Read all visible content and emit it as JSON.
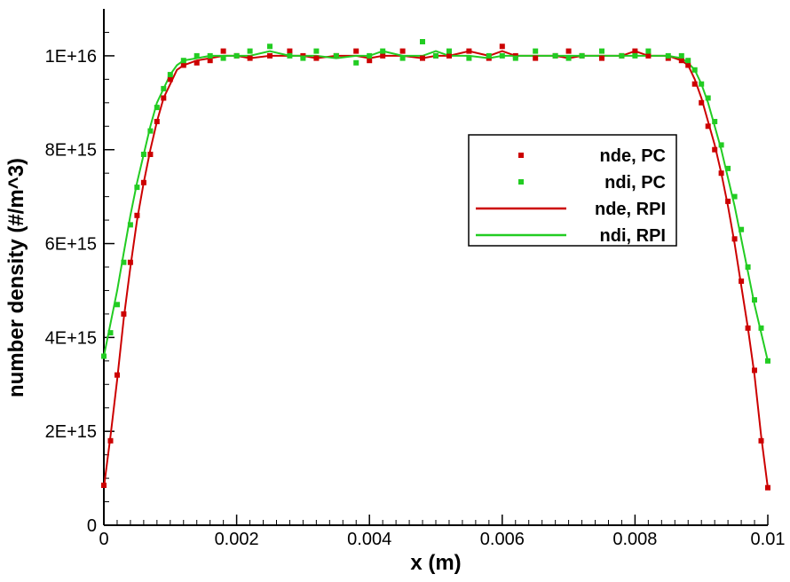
{
  "chart_data": {
    "type": "line",
    "title": "",
    "xlabel": "x (m)",
    "ylabel": "number density (#/m^3)",
    "xlim": [
      0,
      0.01
    ],
    "ylim": [
      0,
      1.1e+16
    ],
    "x_ticks": [
      0,
      0.002,
      0.004,
      0.006,
      0.008,
      0.01
    ],
    "x_tick_labels": [
      "0",
      "0.002",
      "0.004",
      "0.006",
      "0.008",
      "0.01"
    ],
    "y_ticks": [
      0,
      2000000000000000.0,
      4000000000000000.0,
      6000000000000000.0,
      8000000000000000.0,
      1e+16
    ],
    "y_tick_labels": [
      "0",
      "2E+15",
      "4E+15",
      "6E+15",
      "8E+15",
      "1E+16"
    ],
    "grid": false,
    "legend_position": "right",
    "colors": {
      "nde": "#cc0000",
      "ndi": "#22cc22"
    },
    "series": [
      {
        "name": "nde, PC",
        "style": "markers",
        "color": "#cc0000",
        "x": [
          0,
          0.0001,
          0.0002,
          0.0003,
          0.0004,
          0.0005,
          0.0006,
          0.0007,
          0.0008,
          0.0009,
          0.001,
          0.0012,
          0.0014,
          0.0016,
          0.0018,
          0.002,
          0.0022,
          0.0025,
          0.0028,
          0.003,
          0.0032,
          0.0035,
          0.0038,
          0.004,
          0.0042,
          0.0045,
          0.0048,
          0.005,
          0.0052,
          0.0055,
          0.0058,
          0.006,
          0.0062,
          0.0065,
          0.0068,
          0.007,
          0.0072,
          0.0075,
          0.0078,
          0.008,
          0.0082,
          0.0085,
          0.0087,
          0.0088,
          0.0089,
          0.009,
          0.0091,
          0.0092,
          0.0093,
          0.0094,
          0.0095,
          0.0096,
          0.0097,
          0.0098,
          0.0099,
          0.01
        ],
        "y": [
          850000000000000.0,
          1800000000000000.0,
          3200000000000000.0,
          4500000000000000.0,
          5600000000000000.0,
          6600000000000000.0,
          7300000000000000.0,
          7900000000000000.0,
          8600000000000000.0,
          9100000000000000.0,
          9500000000000000.0,
          9800000000000000.0,
          9850000000000000.0,
          9900000000000000.0,
          1.01e+16,
          1e+16,
          9950000000000000.0,
          1e+16,
          1.01e+16,
          1e+16,
          9950000000000000.0,
          1e+16,
          1.01e+16,
          9900000000000000.0,
          1e+16,
          1.01e+16,
          9950000000000000.0,
          1e+16,
          1e+16,
          1.01e+16,
          9950000000000000.0,
          1.02e+16,
          1e+16,
          9950000000000000.0,
          1e+16,
          1.01e+16,
          1e+16,
          9950000000000000.0,
          1e+16,
          1.01e+16,
          1e+16,
          9950000000000000.0,
          9900000000000000.0,
          9800000000000000.0,
          9400000000000000.0,
          9000000000000000.0,
          8500000000000000.0,
          8000000000000000.0,
          7500000000000000.0,
          6900000000000000.0,
          6100000000000000.0,
          5200000000000000.0,
          4200000000000000.0,
          3300000000000000.0,
          1800000000000000.0,
          800000000000000.0
        ]
      },
      {
        "name": "ndi, PC",
        "style": "markers",
        "color": "#22cc22",
        "x": [
          0,
          0.0001,
          0.0002,
          0.0003,
          0.0004,
          0.0005,
          0.0006,
          0.0007,
          0.0008,
          0.0009,
          0.001,
          0.0012,
          0.0014,
          0.0016,
          0.0018,
          0.002,
          0.0022,
          0.0025,
          0.0028,
          0.003,
          0.0032,
          0.0035,
          0.0038,
          0.004,
          0.0042,
          0.0045,
          0.0048,
          0.005,
          0.0052,
          0.0055,
          0.0058,
          0.006,
          0.0062,
          0.0065,
          0.0068,
          0.007,
          0.0072,
          0.0075,
          0.0078,
          0.008,
          0.0082,
          0.0085,
          0.0087,
          0.0088,
          0.0089,
          0.009,
          0.0091,
          0.0092,
          0.0093,
          0.0094,
          0.0095,
          0.0096,
          0.0097,
          0.0098,
          0.0099,
          0.01
        ],
        "y": [
          3600000000000000.0,
          4100000000000000.0,
          4700000000000000.0,
          5600000000000000.0,
          6400000000000000.0,
          7200000000000000.0,
          7900000000000000.0,
          8400000000000000.0,
          8900000000000000.0,
          9300000000000000.0,
          9600000000000000.0,
          9900000000000000.0,
          1e+16,
          1e+16,
          9950000000000000.0,
          1e+16,
          1.01e+16,
          1.02e+16,
          1e+16,
          9950000000000000.0,
          1.01e+16,
          1e+16,
          9850000000000000.0,
          1e+16,
          1.01e+16,
          9950000000000000.0,
          1.03e+16,
          1e+16,
          1.01e+16,
          9950000000000000.0,
          1e+16,
          1e+16,
          9950000000000000.0,
          1.01e+16,
          1e+16,
          9950000000000000.0,
          1e+16,
          1.01e+16,
          1e+16,
          1e+16,
          1.01e+16,
          1e+16,
          1e+16,
          9900000000000000.0,
          9700000000000000.0,
          9400000000000000.0,
          9100000000000000.0,
          8600000000000000.0,
          8100000000000000.0,
          7600000000000000.0,
          7000000000000000.0,
          6300000000000000.0,
          5500000000000000.0,
          4800000000000000.0,
          4200000000000000.0,
          3500000000000000.0
        ]
      },
      {
        "name": "nde, RPI",
        "style": "line",
        "color": "#cc0000",
        "x": [
          0,
          0.0001,
          0.0002,
          0.0003,
          0.0004,
          0.0005,
          0.0006,
          0.0007,
          0.0008,
          0.0009,
          0.001,
          0.0011,
          0.0012,
          0.0014,
          0.0016,
          0.0018,
          0.002,
          0.0022,
          0.0025,
          0.0028,
          0.003,
          0.0032,
          0.0035,
          0.0038,
          0.004,
          0.0042,
          0.0045,
          0.0048,
          0.005,
          0.0052,
          0.0055,
          0.0058,
          0.006,
          0.0062,
          0.0065,
          0.0068,
          0.007,
          0.0072,
          0.0075,
          0.0078,
          0.008,
          0.0082,
          0.0085,
          0.0087,
          0.0088,
          0.0089,
          0.009,
          0.0091,
          0.0092,
          0.0093,
          0.0094,
          0.0095,
          0.0096,
          0.0097,
          0.0098,
          0.0099,
          0.01
        ],
        "y": [
          800000000000000.0,
          1900000000000000.0,
          3100000000000000.0,
          4400000000000000.0,
          5500000000000000.0,
          6500000000000000.0,
          7300000000000000.0,
          8000000000000000.0,
          8600000000000000.0,
          9100000000000000.0,
          9400000000000000.0,
          9700000000000000.0,
          9800000000000000.0,
          9900000000000000.0,
          9950000000000000.0,
          1e+16,
          1e+16,
          9950000000000000.0,
          1e+16,
          1e+16,
          1e+16,
          9950000000000000.0,
          1e+16,
          1e+16,
          9950000000000000.0,
          1e+16,
          1e+16,
          9950000000000000.0,
          1e+16,
          1e+16,
          1.01e+16,
          1e+16,
          1.01e+16,
          1e+16,
          1e+16,
          1e+16,
          9950000000000000.0,
          1e+16,
          1e+16,
          1e+16,
          1.01e+16,
          1e+16,
          1e+16,
          9900000000000000.0,
          9800000000000000.0,
          9500000000000000.0,
          9100000000000000.0,
          8600000000000000.0,
          8100000000000000.0,
          7500000000000000.0,
          6800000000000000.0,
          6000000000000000.0,
          5100000000000000.0,
          4200000000000000.0,
          3200000000000000.0,
          1900000000000000.0,
          800000000000000.0
        ]
      },
      {
        "name": "ndi, RPI",
        "style": "line",
        "color": "#22cc22",
        "x": [
          0,
          0.0001,
          0.0002,
          0.0003,
          0.0004,
          0.0005,
          0.0006,
          0.0007,
          0.0008,
          0.0009,
          0.001,
          0.0011,
          0.0012,
          0.0014,
          0.0016,
          0.0018,
          0.002,
          0.0022,
          0.0025,
          0.0028,
          0.003,
          0.0032,
          0.0035,
          0.0038,
          0.004,
          0.0042,
          0.0045,
          0.0048,
          0.005,
          0.0052,
          0.0055,
          0.0058,
          0.006,
          0.0062,
          0.0065,
          0.0068,
          0.007,
          0.0072,
          0.0075,
          0.0078,
          0.008,
          0.0082,
          0.0085,
          0.0087,
          0.0088,
          0.0089,
          0.009,
          0.0091,
          0.0092,
          0.0093,
          0.0094,
          0.0095,
          0.0096,
          0.0097,
          0.0098,
          0.0099,
          0.01
        ],
        "y": [
          3600000000000000.0,
          4300000000000000.0,
          5000000000000000.0,
          5800000000000000.0,
          6600000000000000.0,
          7300000000000000.0,
          7900000000000000.0,
          8500000000000000.0,
          9000000000000000.0,
          9300000000000000.0,
          9600000000000000.0,
          9800000000000000.0,
          9900000000000000.0,
          9950000000000000.0,
          1e+16,
          1e+16,
          1e+16,
          1e+16,
          1.01e+16,
          1e+16,
          1e+16,
          1e+16,
          9950000000000000.0,
          1e+16,
          1e+16,
          1.01e+16,
          1e+16,
          1e+16,
          1.01e+16,
          1e+16,
          1e+16,
          9950000000000000.0,
          1e+16,
          1e+16,
          1e+16,
          1e+16,
          1e+16,
          1e+16,
          1e+16,
          1e+16,
          1e+16,
          1e+16,
          1e+16,
          9950000000000000.0,
          9850000000000000.0,
          9700000000000000.0,
          9400000000000000.0,
          9000000000000000.0,
          8500000000000000.0,
          8000000000000000.0,
          7400000000000000.0,
          6800000000000000.0,
          6100000000000000.0,
          5400000000000000.0,
          4700000000000000.0,
          4100000000000000.0,
          3500000000000000.0
        ]
      }
    ]
  }
}
